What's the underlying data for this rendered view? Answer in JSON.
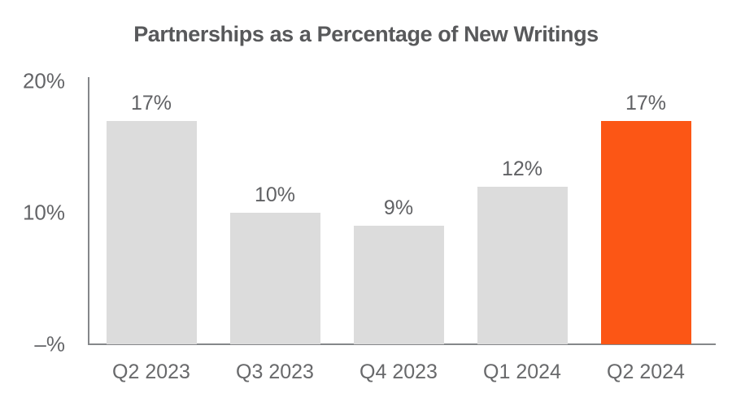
{
  "chart_data": {
    "type": "bar",
    "title": "Partnerships as a Percentage of New Writings",
    "categories": [
      "Q2 2023",
      "Q3 2023",
      "Q4 2023",
      "Q1 2024",
      "Q2 2024"
    ],
    "values": [
      17,
      10,
      9,
      12,
      17
    ],
    "value_labels": [
      "17%",
      "10%",
      "9%",
      "12%",
      "17%"
    ],
    "highlight_index": 4,
    "xlabel": "",
    "ylabel": "",
    "ylim": [
      0,
      20
    ],
    "yticks": [
      {
        "value": 20,
        "label": "20%"
      },
      {
        "value": 10,
        "label": "10%"
      },
      {
        "value": 0,
        "label": "–%"
      }
    ],
    "grid": false,
    "legend": "none"
  },
  "colors": {
    "bar_default": "#dcdcdc",
    "bar_highlight": "#fc5615",
    "title_text": "#58595b",
    "label_text": "#646568",
    "axis_line": "#85878a",
    "background": "#ffffff"
  }
}
